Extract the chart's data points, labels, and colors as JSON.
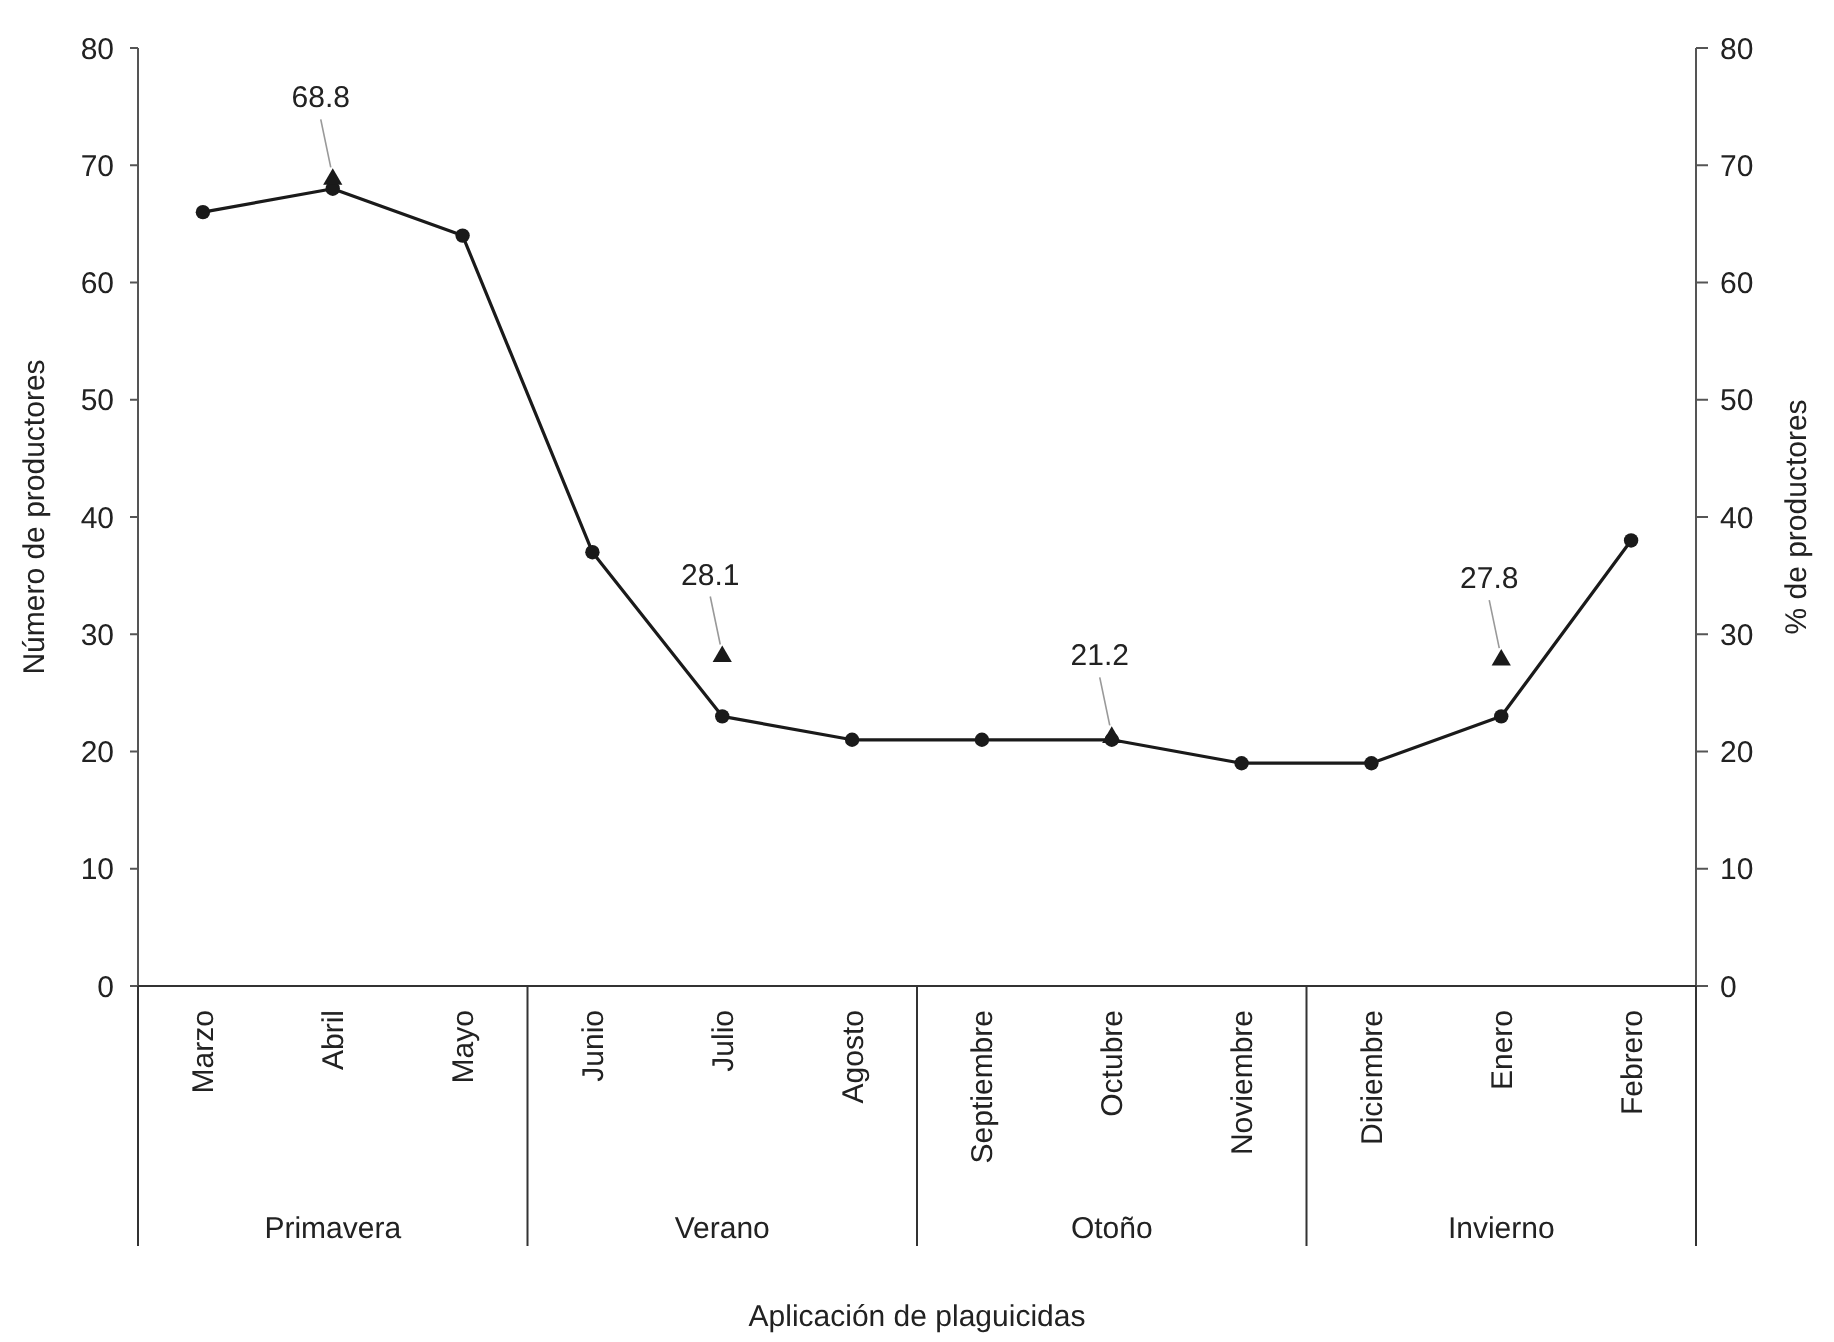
{
  "chart_data": {
    "type": "line",
    "xlabel": "Aplicación de plaguicidas",
    "ylabel": "Número de productores",
    "y2label": "% de productores",
    "categories": [
      "Marzo",
      "Abril",
      "Mayo",
      "Junio",
      "Julio",
      "Agosto",
      "Septiembre",
      "Octubre",
      "Noviembre",
      "Diciembre",
      "Enero",
      "Febrero"
    ],
    "series": [
      {
        "color": "#1a1a1a",
        "marker": "circle",
        "values": [
          66,
          68,
          64,
          37,
          23,
          21,
          21,
          21,
          19,
          19,
          23,
          38
        ]
      },
      {
        "type": "scatter",
        "axis": "y2",
        "color": "#1a1a1a",
        "marker": "triangle",
        "values": [
          null,
          68.8,
          null,
          null,
          28.1,
          null,
          null,
          21.2,
          null,
          null,
          27.8,
          null
        ],
        "value_labels": [
          null,
          "68.8",
          null,
          null,
          "28.1",
          null,
          null,
          "21.2",
          null,
          null,
          "27.8",
          null
        ]
      }
    ],
    "ylim": [
      0,
      80
    ],
    "yticks": [
      0,
      10,
      20,
      30,
      40,
      50,
      60,
      70,
      80
    ],
    "y2lim": [
      0,
      80
    ],
    "y2ticks": [
      0,
      10,
      20,
      30,
      40,
      50,
      60,
      70,
      80
    ],
    "annotations": [
      "Primavera",
      "Verano",
      "Otoño",
      "Invierno"
    ],
    "grid": false
  }
}
